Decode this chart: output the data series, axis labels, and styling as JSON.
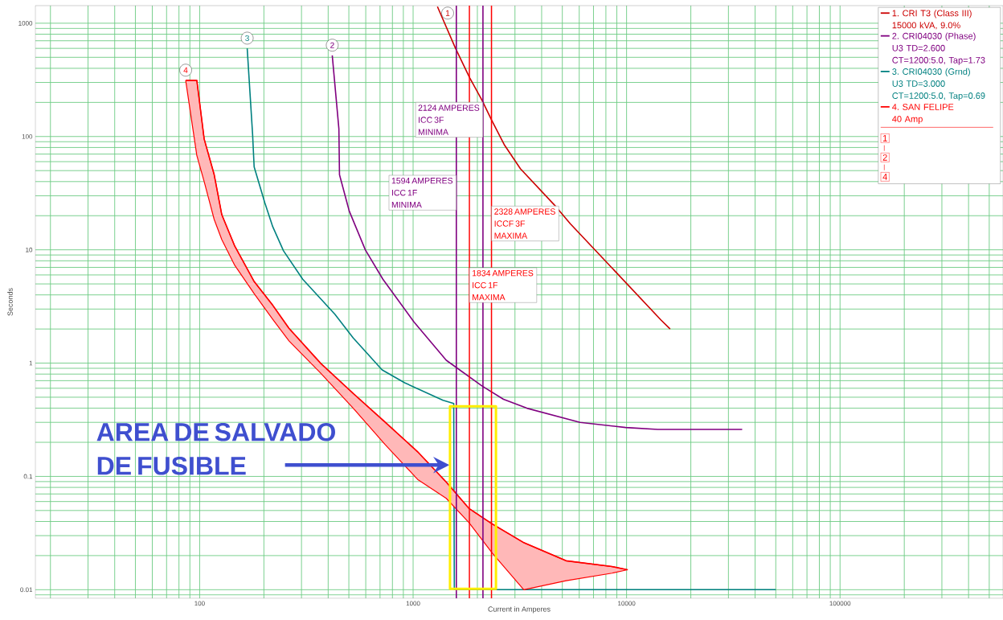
{
  "chart_data": {
    "type": "line",
    "xlabel": "Current in Amperes",
    "ylabel": "Seconds",
    "log": "xy",
    "xlim": [
      17,
      580000
    ],
    "ylim": [
      0.0084,
      1430
    ],
    "xticks": [
      100,
      1000,
      10000,
      100000
    ],
    "yticks": [
      0.01,
      0.1,
      1,
      10,
      100,
      1000
    ],
    "grid": true,
    "legend": "top right",
    "series": [
      {
        "name": "1. CRI T3 (Class III) 15000 kVA, 9.0%",
        "color": "#cc0000",
        "x": [
          1300,
          1580,
          1840,
          2100,
          2330,
          2670,
          3180,
          4580,
          5450,
          14500,
          16000
        ],
        "values": [
          1400,
          600,
          330,
          210,
          140,
          85,
          52,
          25,
          17,
          2.4,
          2.0
        ]
      },
      {
        "name": "2. CRI04030 (Phase) U3 TD=2.600 CT=1200:5.0, Tap=1.73",
        "color": "#800080",
        "x": [
          418,
          449,
          452,
          502,
          597,
          722,
          1010,
          1430,
          2100,
          2650,
          3410,
          6050,
          9910,
          14000,
          34800
        ],
        "values": [
          520,
          117,
          46,
          22,
          10,
          5.5,
          2.3,
          1.06,
          0.63,
          0.48,
          0.4,
          0.3,
          0.27,
          0.26,
          0.26
        ]
      },
      {
        "name": "3. CRI04030 (Grnd) U3 TD=3.000 CT=1200:5.0, Tap=0.69",
        "color": "#008080",
        "x": [
          167,
          177,
          180,
          202,
          220,
          247,
          304,
          430,
          524,
          716,
          913,
          1380,
          1550,
          1560,
          50000
        ],
        "values": [
          600,
          105,
          54,
          26,
          16,
          9.8,
          5.5,
          2.7,
          1.67,
          0.87,
          0.67,
          0.47,
          0.44,
          0.01,
          0.01
        ]
      },
      {
        "name": "4. SAN FELIPE 40 Amp",
        "color": "#ff0000",
        "x": [
          86,
          97,
          105,
          117,
          127,
          146,
          180,
          220,
          262,
          370,
          524,
          741,
          1050,
          1430,
          1830,
          2350,
          3300,
          5210,
          8550,
          10100
        ],
        "values": [
          313,
          313,
          95,
          46,
          20.4,
          10.8,
          5.25,
          3.24,
          2.03,
          0.99,
          0.54,
          0.3,
          0.165,
          0.089,
          0.052,
          0.038,
          0.026,
          0.018,
          0.016,
          0.015
        ],
        "lower": [
          313,
          68,
          40,
          18.5,
          12.3,
          7.3,
          4.1,
          2.43,
          1.57,
          0.81,
          0.4,
          0.19,
          0.094,
          0.064,
          0.039,
          0.021,
          0.01,
          0.012,
          0.014,
          0.015
        ],
        "upper": [
          313,
          313,
          95,
          46,
          20.4,
          10.8,
          5.25,
          3.24,
          2.03,
          0.99,
          0.54,
          0.3,
          0.165,
          0.089,
          0.052,
          0.038,
          0.026,
          0.018,
          0.016,
          0.015
        ]
      }
    ],
    "ref_lines": [
      {
        "axis": "x",
        "value": 1594,
        "label": "1594 AMPERES ICC 1F MINIMA",
        "color": "#800080"
      },
      {
        "axis": "x",
        "value": 1834,
        "label": "1834 AMPERES ICC 1F MAXIMA",
        "color": "#ff0000"
      },
      {
        "axis": "x",
        "value": 2124,
        "label": "2124 AMPERES ICC 3F MINIMA",
        "color": "#800080"
      },
      {
        "axis": "x",
        "value": 2328,
        "label": "2328 AMPERES ICCF 3F MAXIMA",
        "color": "#ff0000"
      }
    ],
    "annotations": [
      "1",
      "2",
      "3",
      "4",
      "AREA DE SALVADO DE FUSIBLE",
      "1",
      "2",
      "4"
    ]
  }
}
